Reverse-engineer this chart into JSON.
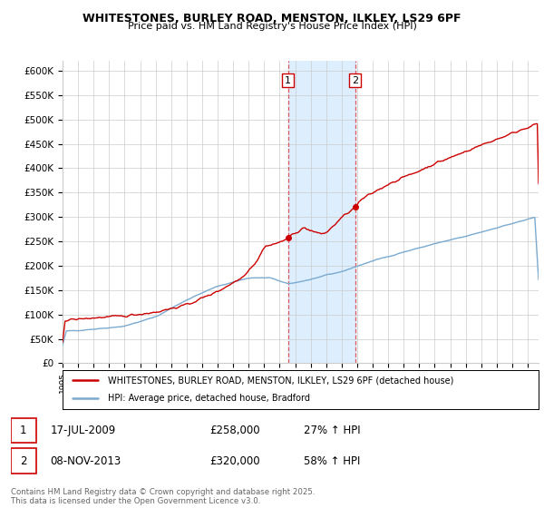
{
  "title_line1": "WHITESTONES, BURLEY ROAD, MENSTON, ILKLEY, LS29 6PF",
  "title_line2": "Price paid vs. HM Land Registry's House Price Index (HPI)",
  "ylim": [
    0,
    620000
  ],
  "yticks": [
    0,
    50000,
    100000,
    150000,
    200000,
    250000,
    300000,
    350000,
    400000,
    450000,
    500000,
    550000,
    600000
  ],
  "ytick_labels": [
    "£0",
    "£50K",
    "£100K",
    "£150K",
    "£200K",
    "£250K",
    "£300K",
    "£350K",
    "£400K",
    "£450K",
    "£500K",
    "£550K",
    "£600K"
  ],
  "xlim_start": 1995.0,
  "xlim_end": 2025.7,
  "house_color": "#cc0000",
  "hpi_color": "#7aaad0",
  "shade_color": "#ddeeff",
  "marker1_date": 2009.54,
  "marker2_date": 2013.86,
  "marker1_price": 258000,
  "marker2_price": 320000,
  "sale1_label": "1",
  "sale2_label": "2",
  "legend_house": "WHITESTONES, BURLEY ROAD, MENSTON, ILKLEY, LS29 6PF (detached house)",
  "legend_hpi": "HPI: Average price, detached house, Bradford",
  "table_row1": [
    "1",
    "17-JUL-2009",
    "£258,000",
    "27% ↑ HPI"
  ],
  "table_row2": [
    "2",
    "08-NOV-2013",
    "£320,000",
    "58% ↑ HPI"
  ],
  "footnote": "Contains HM Land Registry data © Crown copyright and database right 2025.\nThis data is licensed under the Open Government Licence v3.0.",
  "background_color": "#ffffff",
  "grid_color": "#cccccc"
}
